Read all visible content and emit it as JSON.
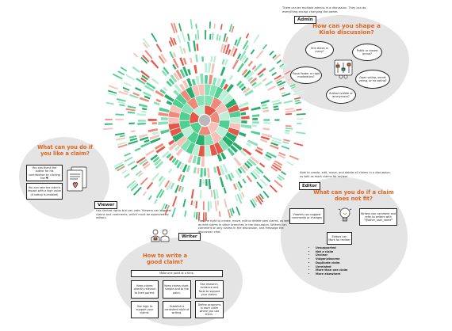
{
  "colors": {
    "accent": "#e0641c",
    "blob": "#e4e4e4",
    "ring_center": "#b9b9b9",
    "greens": [
      "#27ae6e",
      "#4fcf92",
      "#86e1b5",
      "#bcefd5"
    ],
    "reds": [
      "#e4584a",
      "#ee8a7c",
      "#f6c1b8"
    ]
  },
  "admin": {
    "note": "There can be multiple admins in a discussion. They can do everything except changing the owner.",
    "tag": "Admin",
    "title": "How can you shape a Kialo discussion?",
    "bubbles": [
      "One thesis or many?",
      "Public or closed group?",
      "Equal footer or rigid moderation?",
      "Open voting, secret voting, or no voting?",
      "Authors visible or anonymous?"
    ]
  },
  "viewer": {
    "title": "What can you do if you like a claim?",
    "box_thank": "You can thank the author for his contribution by clicking the ♥",
    "box_rate": "You can rate the claim's impact with a high value (if voting is enabled)",
    "tag": "Viewer",
    "note": "Has limited rights but can vote. Viewers can suggest claims and comments, which must be approved by editors."
  },
  "editor": {
    "note": "Able to create, edit, move, and delete all claims in a discussion, as well as mark claims for review.",
    "tag": "Editor",
    "title": "What can you do if a claim does not fit?",
    "box_viewers": "Viewers can suggest comments or changes",
    "box_writers": "Writers can comment and refer to writers with \"@other_user_name\"",
    "box_mark": "Editors can Mark for review:",
    "reasons": [
      "Unsupported",
      "Not a claim",
      "Unclear",
      "Vulgar/obscene",
      "Duplicate claim",
      "Unrelated",
      "More than one claim",
      "More elsewhere"
    ]
  },
  "writer": {
    "note": "Has the right to create, move, edit or delete own claims, as well as edit claims in other branches in the discussion. Writers can comment on any claims in the discussion, and message the discussion chat.",
    "tag": "Writer",
    "title": "How to write a good claim?",
    "top_box": "Make one point at a time.",
    "boxes": [
      "Keep claims directly relevant to their parent.",
      "Keep claims short, simple and to the point.",
      "Use research, evidence and facts to support your claims.",
      "Use logic to support your claims.",
      "Establish a consistent style of writing.",
      "Define acronyms in each claim where you use them."
    ]
  }
}
